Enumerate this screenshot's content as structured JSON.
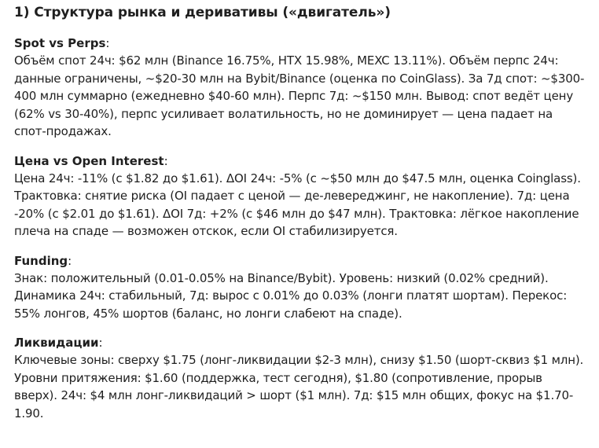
{
  "heading": "1) Структура рынка и деривативы («двигатель»)",
  "sections": [
    {
      "title": "Spot vs Perps",
      "text": "Объём спот 24ч: $62 млн (Binance 16.75%, HTX 15.98%, MEXC 13.11%). Объём перпс 24ч: данные ограничены, ~$20-30 млн на Bybit/Binance (оценка по CoinGlass). За 7д спот: ~$300-400 млн суммарно (ежедневно $40-60 млн). Перпс 7д: ~$150 млн. Вывод: спот ведёт цену (62% vs 30-40%), перпс усиливает волатильность, но не доминирует — цена падает на спот-продажах."
    },
    {
      "title": "Цена vs Open Interest",
      "text": "Цена 24ч: -11% (с $1.82 до $1.61). ΔOI 24ч: -5% (с ~$50 млн до $47.5 млн, оценка Coinglass). Трактовка: снятие риска (OI падает с ценой — де-левереджинг, не накопление). 7д: цена -20% (с $2.01 до $1.61). ΔOI 7д: +2% (с $46 млн до $47 млн). Трактовка: лёгкое накопление плеча на спаде — возможен отскок, если OI стабилизируется."
    },
    {
      "title": "Funding",
      "text": "Знак: положительный (0.01-0.05% на Binance/Bybit). Уровень: низкий (0.02% средний). Динамика 24ч: стабильный, 7д: вырос с 0.01% до 0.03% (лонги платят шортам). Перекос: 55% лонгов, 45% шортов (баланс, но лонги слабеют на спаде)."
    },
    {
      "title": "Ликвидации",
      "text": "Ключевые зоны: сверху $1.75 (лонг-ликвидации $2-3 млн), снизу $1.50 (шорт-сквиз $1 млн). Уровни притяжения: $1.60 (поддержка, тест сегодня), $1.80 (сопротивление, прорыв вверх). 24ч: $4 млн лонг-ликвидаций > шорт ($1 млн). 7д: $15 млн общих, фокус на $1.70-1.90."
    }
  ],
  "colon": ":"
}
